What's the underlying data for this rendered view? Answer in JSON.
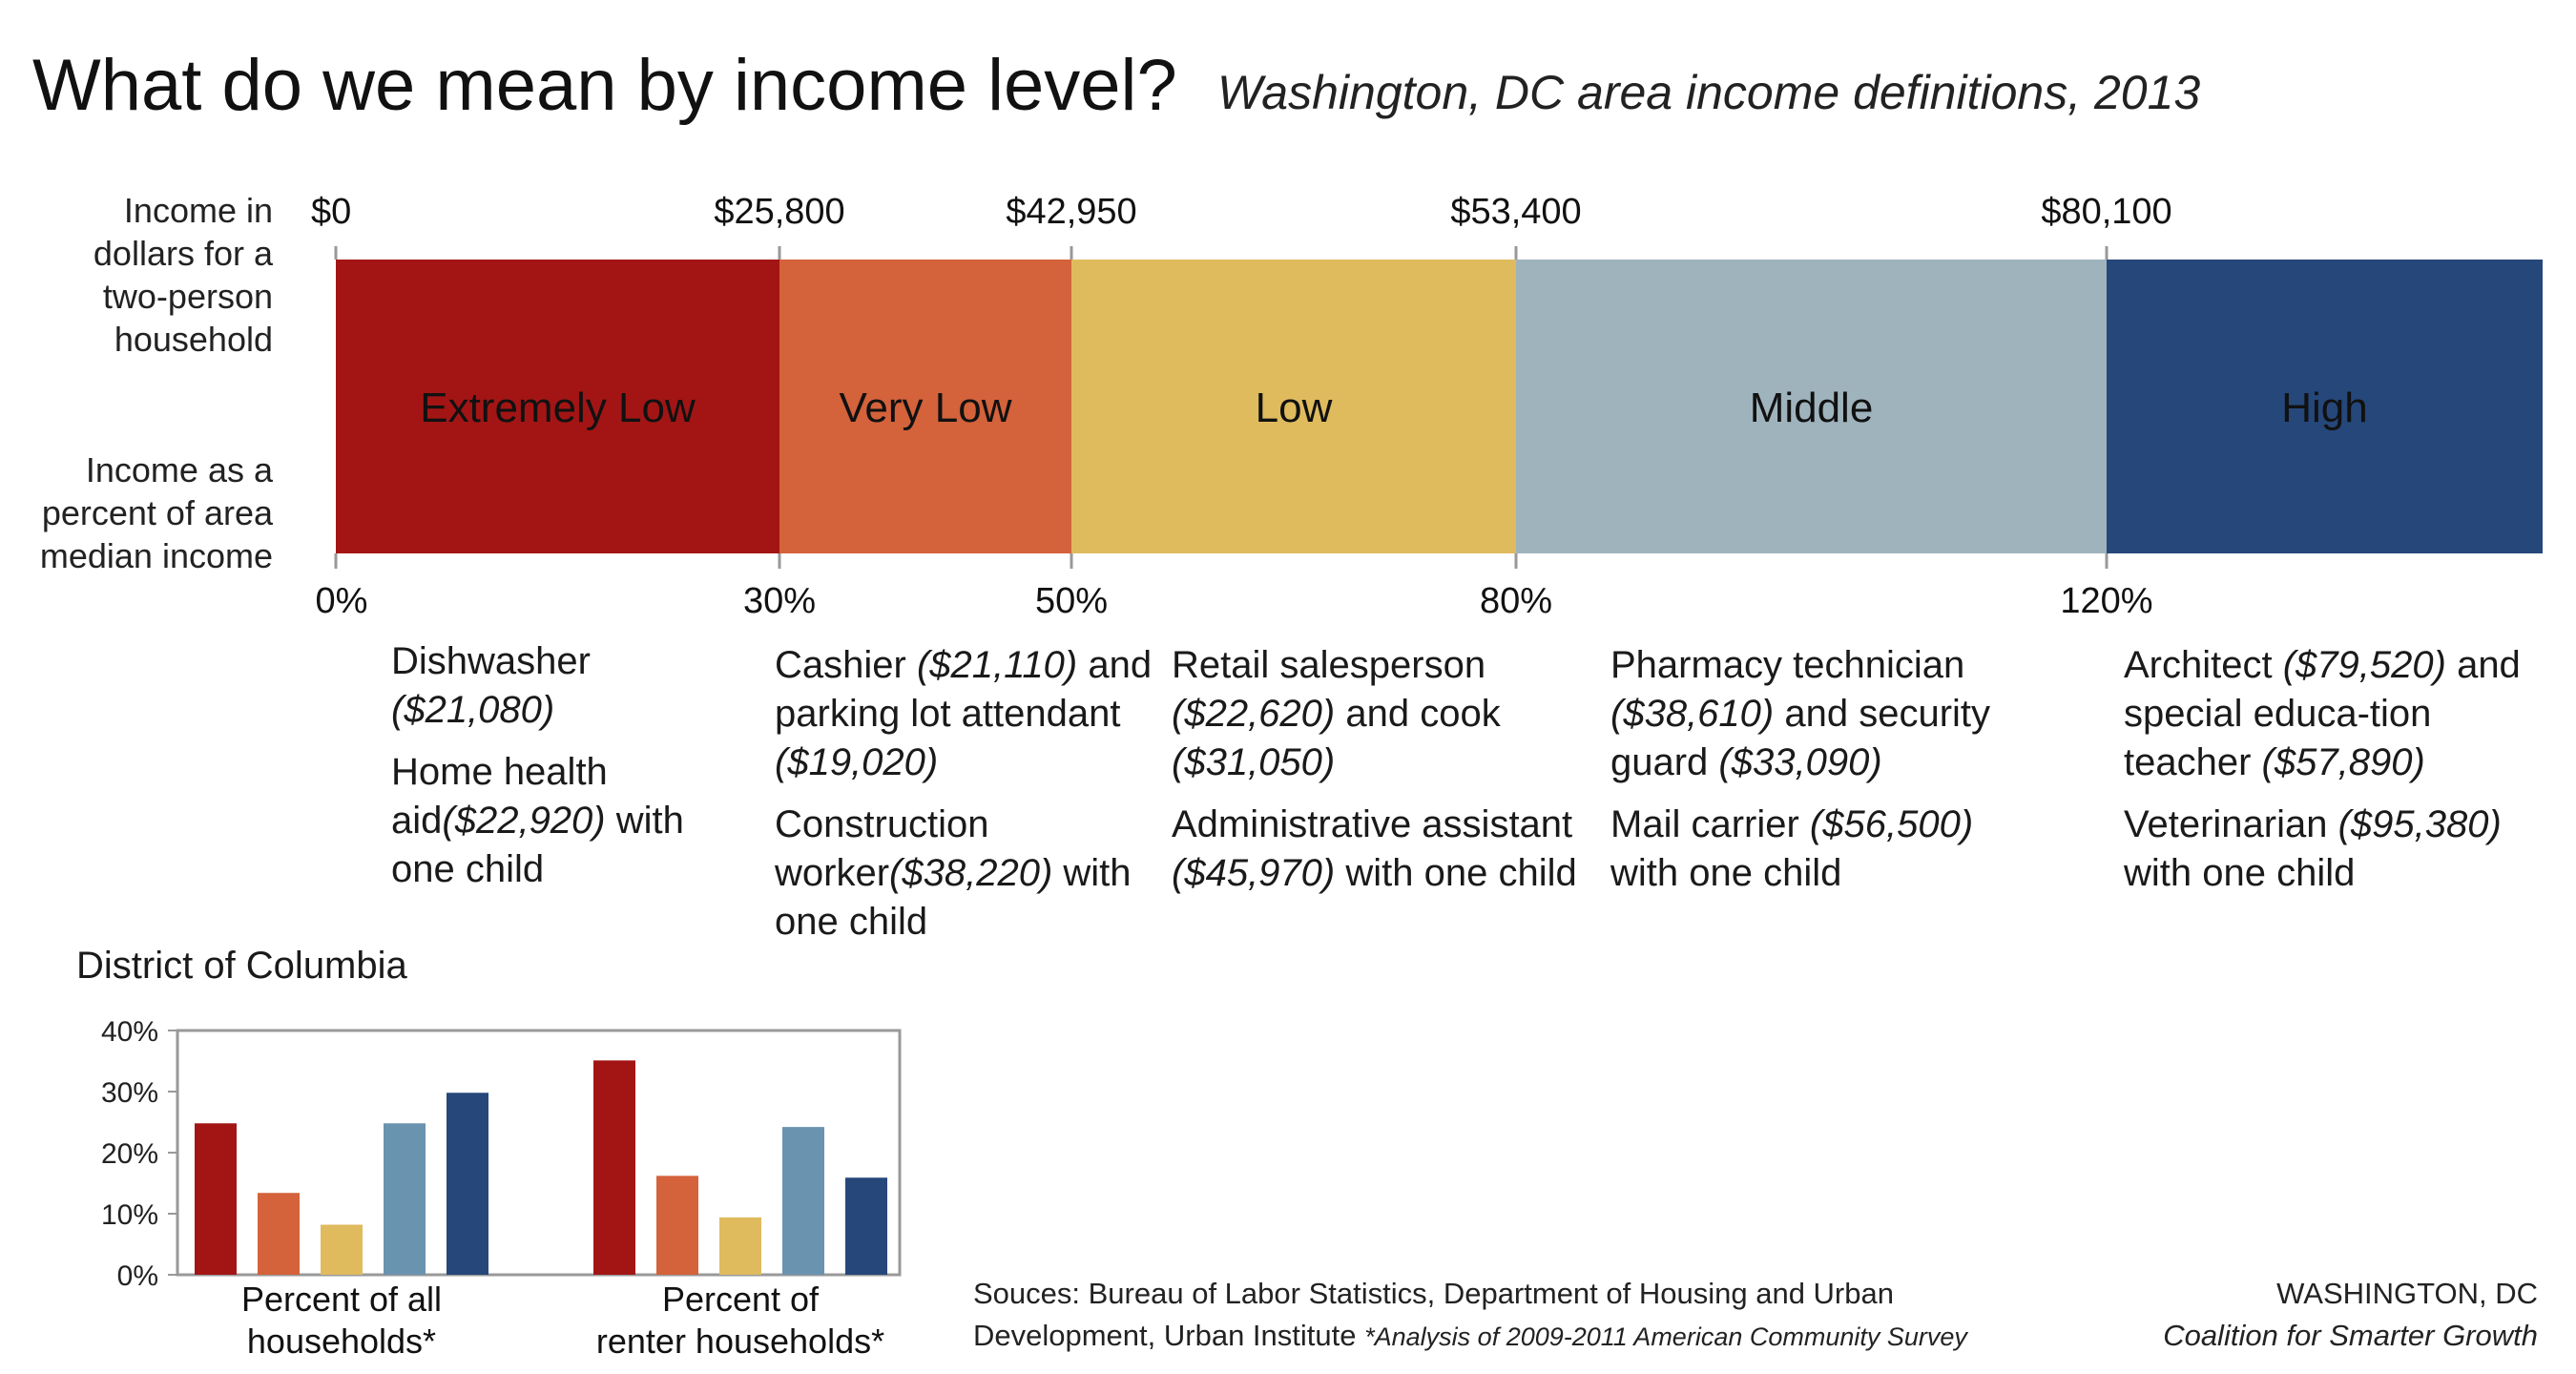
{
  "header": {
    "title": "What do we mean by income level?",
    "subtitle": "Washington, DC  area income definitions, 2013"
  },
  "band": {
    "dollars_label": "Income in dollars for a two-person household",
    "percent_label": "Income as a percent of area median income",
    "dollar_ticks": [
      "$0",
      "$25,800",
      "$42,950",
      "$53,400",
      "$80,100"
    ],
    "percent_ticks": [
      "0%",
      "30%",
      "50%",
      "80%",
      "120%"
    ],
    "levels": [
      {
        "name": "Extremely Low",
        "color": "#a31515"
      },
      {
        "name": "Very Low",
        "color": "#d4623b"
      },
      {
        "name": "Low",
        "color": "#dfbb5e"
      },
      {
        "name": "Middle",
        "color": "#9fb3bd"
      },
      {
        "name": "High",
        "color": "#25477a"
      }
    ]
  },
  "examples": [
    {
      "jobs": [
        {
          "text": "Dishwasher",
          "wage": "($21,080)",
          "after": ""
        },
        {
          "text": "Home health aid",
          "wage": "($22,920)",
          "after": " with one child"
        }
      ]
    },
    {
      "jobs": [
        {
          "text": "Cashier ",
          "wage": "($21,110)",
          "after": " and parking lot attendant ",
          "wage2": "($19,020)"
        },
        {
          "text": "Construction worker",
          "wage": "($38,220)",
          "after": " with one child"
        }
      ]
    },
    {
      "jobs": [
        {
          "text": "Retail salesperson ",
          "wage": "($22,620)",
          "after": " and cook ",
          "wage2": "($31,050)"
        },
        {
          "text": "Administrative assistant ",
          "wage": "($45,970)",
          "after": " with one child"
        }
      ]
    },
    {
      "jobs": [
        {
          "text": "Pharmacy technician ",
          "wage": "($38,610)",
          "after": " and security guard ",
          "wage2": "($33,090)"
        },
        {
          "text": "Mail carrier ",
          "wage": "($56,500)",
          "after": " with one child"
        }
      ]
    },
    {
      "jobs": [
        {
          "text": "Architect ",
          "wage": "($79,520)",
          "after": " and special educa-tion teacher ",
          "wage2": "($57,890)"
        },
        {
          "text": "Veterinarian ",
          "wage": "($95,380)",
          "after": " with one child"
        }
      ]
    }
  ],
  "dc_chart_title": "District of Columbia",
  "chart_data": {
    "type": "bar",
    "title": "District of Columbia",
    "categories": [
      "Percent of all households*",
      "Percent of renter households*"
    ],
    "category_lines": [
      [
        "Percent of all",
        "households*"
      ],
      [
        "Percent of",
        "renter households*"
      ]
    ],
    "series": [
      {
        "name": "Extremely Low",
        "color": "#a31515",
        "values": [
          24.8,
          35.1
        ]
      },
      {
        "name": "Very Low",
        "color": "#d4623b",
        "values": [
          13.4,
          16.2
        ]
      },
      {
        "name": "Low",
        "color": "#dfbb5e",
        "values": [
          8.2,
          9.4
        ]
      },
      {
        "name": "Middle",
        "color": "#6a93b0",
        "values": [
          24.8,
          24.2
        ]
      },
      {
        "name": "High",
        "color": "#25477a",
        "values": [
          29.8,
          15.9
        ]
      }
    ],
    "ylim": [
      0,
      40
    ],
    "yticks": [
      "0%",
      "10%",
      "20%",
      "30%",
      "40%"
    ],
    "grid": false
  },
  "footer": {
    "source_line1": "Souces: Bureau of Labor Statistics, Department of Housing and Urban",
    "source_line2": "Development, Urban Institute",
    "source_note": "*Analysis of 2009-2011 American Community Survey",
    "org_line1": "WASHINGTON, DC",
    "org_line2": "Coalition for Smarter Growth"
  }
}
